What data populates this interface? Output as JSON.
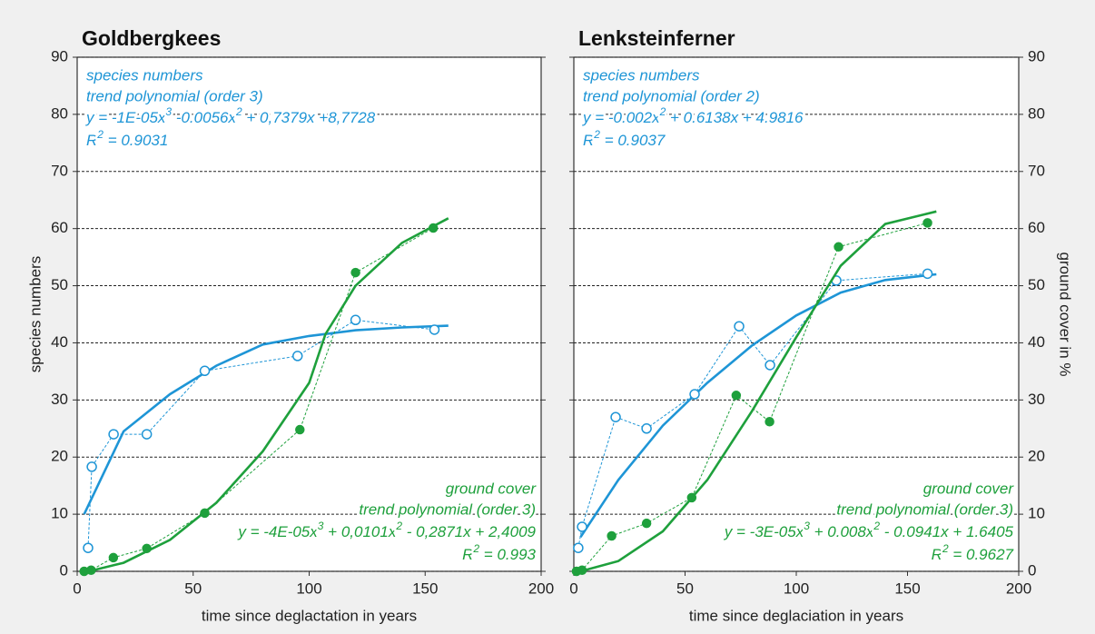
{
  "chart_data": [
    {
      "type": "line",
      "title": "Goldbergkees",
      "x_label": "time since deglactation in years",
      "y_label": "species numbers",
      "y_axis_side": "left",
      "xlim": [
        0,
        200
      ],
      "xticks": [
        0,
        50,
        100,
        150,
        200
      ],
      "ylim": [
        0,
        90
      ],
      "yticks": [
        0,
        10,
        20,
        30,
        40,
        50,
        60,
        70,
        80,
        90
      ],
      "grid": true,
      "series": [
        {
          "name": "species numbers",
          "color": "#1e95d6",
          "marker": "open",
          "annotation_corner": "top-left",
          "x": [
            4.7,
            6.3,
            15.7,
            30,
            55,
            95,
            120,
            154
          ],
          "values": [
            4.1,
            18.3,
            24,
            24,
            35.1,
            37.7,
            44,
            42.3
          ],
          "trend_label": "trend polynomial (order 3)",
          "equation": [
            "y = -1E-05x",
            "3",
            " -0.0056x",
            "2",
            " + 0,7379x +8,7728"
          ],
          "r2": [
            "R",
            "2",
            " = 0.9031"
          ],
          "trend": {
            "x": [
              3,
              20,
              40,
              60,
              80,
              100,
              120,
              140,
              160
            ],
            "values": [
              10,
              24.5,
              31,
              36,
              39.7,
              41.2,
              42.2,
              42.7,
              43
            ]
          }
        },
        {
          "name": "ground cover",
          "color": "#1ea03c",
          "marker": "filled",
          "annotation_corner": "bottom-right",
          "x": [
            3,
            6,
            15.6,
            30,
            55,
            96,
            120,
            153.5
          ],
          "values": [
            0,
            0.2,
            2.4,
            4,
            10.2,
            24.8,
            52.3,
            60.1
          ],
          "trend_label": "trend polynomial (order 3)",
          "equation": [
            "y = -4E-05x",
            "3",
            " + 0,0101x",
            "2",
            " - 0,2871x + 2,4009"
          ],
          "r2": [
            "R",
            "2",
            "  = 0.993"
          ],
          "trend": {
            "x": [
              5,
              20,
              40,
              60,
              80,
              100,
              107,
              120,
              140,
              160
            ],
            "values": [
              0,
              1.5,
              5.5,
              12,
              21,
              33,
              41.5,
              50,
              57.5,
              61.8
            ]
          }
        }
      ]
    },
    {
      "type": "line",
      "title": "Lenksteinferner",
      "x_label": "time since deglaciation in years",
      "y_label": "ground cover in %",
      "y_axis_side": "right",
      "xlim": [
        0,
        200
      ],
      "xticks": [
        0,
        50,
        100,
        150,
        200
      ],
      "ylim": [
        0,
        90
      ],
      "yticks": [
        0,
        10,
        20,
        30,
        40,
        50,
        60,
        70,
        80,
        90
      ],
      "grid": true,
      "series": [
        {
          "name": "species numbers",
          "color": "#1e95d6",
          "marker": "open",
          "annotation_corner": "top-left",
          "x": [
            2,
            3.7,
            18.8,
            32.7,
            54.3,
            74.3,
            88.2,
            118,
            159
          ],
          "values": [
            4.1,
            7.8,
            27,
            25,
            31,
            42.9,
            36.1,
            50.9,
            52.1
          ],
          "trend_label": "trend polynomial (order 2)",
          "equation": [
            "y = -0.002x",
            "2",
            " + 0.6138x + 4.9816"
          ],
          "r2": [
            "R",
            "2",
            " = 0.9037"
          ],
          "trend": {
            "x": [
              3,
              20,
              40,
              60,
              80,
              100,
              120,
              140,
              163
            ],
            "values": [
              6,
              16,
              25.5,
              33,
              39.5,
              44.8,
              48.8,
              51,
              52
            ]
          }
        },
        {
          "name": "ground cover",
          "color": "#1ea03c",
          "marker": "filled",
          "annotation_corner": "bottom-right",
          "x": [
            1.2,
            3.7,
            17,
            32.7,
            53,
            73,
            88,
            119,
            159
          ],
          "values": [
            0,
            0.2,
            6.2,
            8.4,
            12.9,
            30.8,
            26.2,
            56.8,
            61
          ],
          "trend_label": "trend polynomial (order 3)",
          "equation": [
            "y = -3E-05x",
            "3",
            " + 0.008x",
            "2",
            " - 0.0941x + 1.6405"
          ],
          "r2": [
            "R",
            "2",
            " = 0.9627"
          ],
          "trend": {
            "x": [
              3,
              20,
              40,
              60,
              80,
              100,
              120,
              140,
              163
            ],
            "values": [
              0,
              1.8,
              7,
              16,
              28,
              41,
              53.5,
              60.8,
              63
            ]
          }
        }
      ]
    }
  ]
}
